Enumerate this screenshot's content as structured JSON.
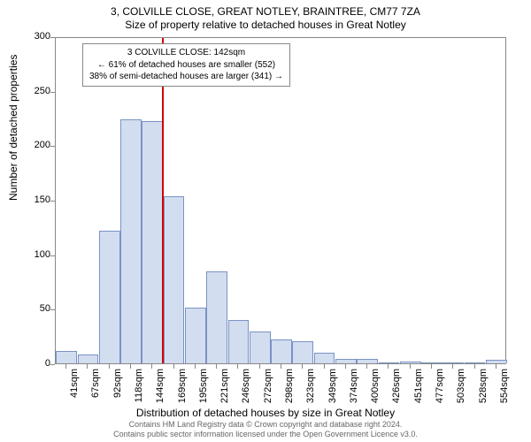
{
  "title": {
    "line1": "3, COLVILLE CLOSE, GREAT NOTLEY, BRAINTREE, CM77 7ZA",
    "line2": "Size of property relative to detached houses in Great Notley"
  },
  "y_axis": {
    "label": "Number of detached properties",
    "ticks": [
      0,
      50,
      100,
      150,
      200,
      250,
      300
    ],
    "max": 300
  },
  "x_axis": {
    "label": "Distribution of detached houses by size in Great Notley",
    "ticks": [
      "41sqm",
      "67sqm",
      "92sqm",
      "118sqm",
      "144sqm",
      "169sqm",
      "195sqm",
      "221sqm",
      "246sqm",
      "272sqm",
      "298sqm",
      "323sqm",
      "349sqm",
      "374sqm",
      "400sqm",
      "426sqm",
      "451sqm",
      "477sqm",
      "503sqm",
      "528sqm",
      "554sqm"
    ]
  },
  "bars": {
    "values": [
      11,
      8,
      122,
      224,
      222,
      153,
      51,
      84,
      40,
      29,
      22,
      20,
      10,
      4,
      4,
      1,
      2,
      0,
      0,
      0,
      3
    ],
    "fill_color": "#d2ddf0",
    "border_color": "#7a93c4",
    "width_fraction": 0.98
  },
  "marker": {
    "bin_center_index": 4,
    "color": "#d40000"
  },
  "info_box": {
    "line1": "3 COLVILLE CLOSE: 142sqm",
    "line2": "← 61% of detached houses are smaller (552)",
    "line3": "38% of semi-detached houses are larger (341) →"
  },
  "footer": {
    "line1": "Contains HM Land Registry data © Crown copyright and database right 2024.",
    "line2": "Contains public sector information licensed under the Open Government Licence v3.0."
  },
  "style": {
    "chart_border_color": "#888888",
    "background_color": "#ffffff",
    "text_color": "#000000",
    "footer_color": "#666666"
  }
}
